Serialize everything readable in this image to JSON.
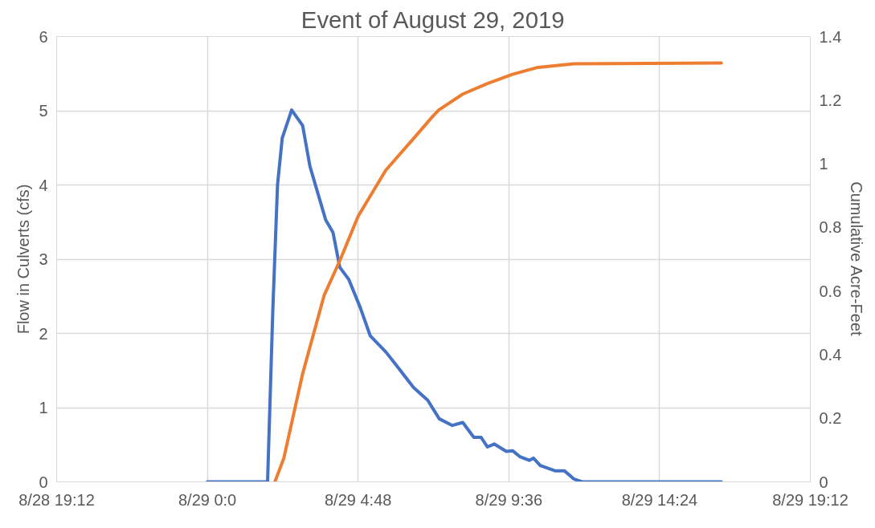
{
  "chart_data": {
    "type": "line",
    "title": "Event of August 29, 2019",
    "ylabel": "Flow in Culverts (cfs)",
    "y2label": "Cumulative Acre-Feet",
    "xlim": [
      "2019-08-28T19:12",
      "2019-08-29T19:12"
    ],
    "xticks": [
      {
        "value": "2019-08-28T19:12",
        "label": "8/28 19:12"
      },
      {
        "value": "2019-08-29T00:00",
        "label": "8/29 0:0"
      },
      {
        "value": "2019-08-29T04:48",
        "label": "8/29 4:48"
      },
      {
        "value": "2019-08-29T09:36",
        "label": "8/29 9:36"
      },
      {
        "value": "2019-08-29T14:24",
        "label": "8/29 14:24"
      },
      {
        "value": "2019-08-29T19:12",
        "label": "8/29 19:12"
      }
    ],
    "ylim": [
      0,
      6
    ],
    "yticks": [
      0,
      1,
      2,
      3,
      4,
      5,
      6
    ],
    "y2lim": [
      0,
      1.4
    ],
    "y2ticks": [
      0,
      0.2,
      0.4,
      0.6,
      0.8,
      1,
      1.2,
      1.4
    ],
    "grid": true,
    "marker": "none",
    "line_style": "solid",
    "series": [
      {
        "color": "#4472c4",
        "x": [
          "2019-08-29T00:00",
          "2019-08-29T01:55",
          "2019-08-29T02:05",
          "2019-08-29T02:14",
          "2019-08-29T02:23",
          "2019-08-29T02:41",
          "2019-08-29T02:56",
          "2019-08-29T03:02",
          "2019-08-29T03:16",
          "2019-08-29T03:46",
          "2019-08-29T04:00",
          "2019-08-29T04:13",
          "2019-08-29T04:30",
          "2019-08-29T04:52",
          "2019-08-29T05:11",
          "2019-08-29T05:41",
          "2019-08-29T05:59",
          "2019-08-29T06:34",
          "2019-08-29T07:01",
          "2019-08-29T07:23",
          "2019-08-29T07:48",
          "2019-08-29T08:08",
          "2019-08-29T08:29",
          "2019-08-29T08:43",
          "2019-08-29T08:55",
          "2019-08-29T09:08",
          "2019-08-29T09:31",
          "2019-08-29T09:43",
          "2019-08-29T09:57",
          "2019-08-29T10:15",
          "2019-08-29T10:23",
          "2019-08-29T10:36",
          "2019-08-29T11:04",
          "2019-08-29T11:22",
          "2019-08-29T11:40",
          "2019-08-29T11:56",
          "2019-08-29T16:22"
        ],
        "values": [
          0,
          0,
          2.31,
          4.0,
          4.63,
          5.01,
          4.86,
          4.8,
          4.25,
          3.53,
          3.36,
          2.89,
          2.73,
          2.35,
          1.97,
          1.75,
          1.59,
          1.27,
          1.1,
          0.85,
          0.76,
          0.8,
          0.6,
          0.6,
          0.47,
          0.51,
          0.41,
          0.42,
          0.34,
          0.29,
          0.32,
          0.22,
          0.15,
          0.15,
          0.04,
          0,
          0
        ]
      },
      {
        "color": "#ed7d31",
        "axis": "y2",
        "x": [
          "2019-08-29T02:09",
          "2019-08-29T02:26",
          "2019-08-29T03:02",
          "2019-08-29T03:43",
          "2019-08-29T04:13",
          "2019-08-29T04:48",
          "2019-08-29T05:41",
          "2019-08-29T06:29",
          "2019-08-29T07:10",
          "2019-08-29T07:22",
          "2019-08-29T08:08",
          "2019-08-29T08:55",
          "2019-08-29T09:43",
          "2019-08-29T10:29",
          "2019-08-29T11:40",
          "2019-08-29T16:22"
        ],
        "values": [
          0,
          0.074,
          0.34,
          0.586,
          0.695,
          0.835,
          0.98,
          1.07,
          1.148,
          1.169,
          1.219,
          1.252,
          1.281,
          1.302,
          1.314,
          1.317
        ]
      }
    ]
  }
}
